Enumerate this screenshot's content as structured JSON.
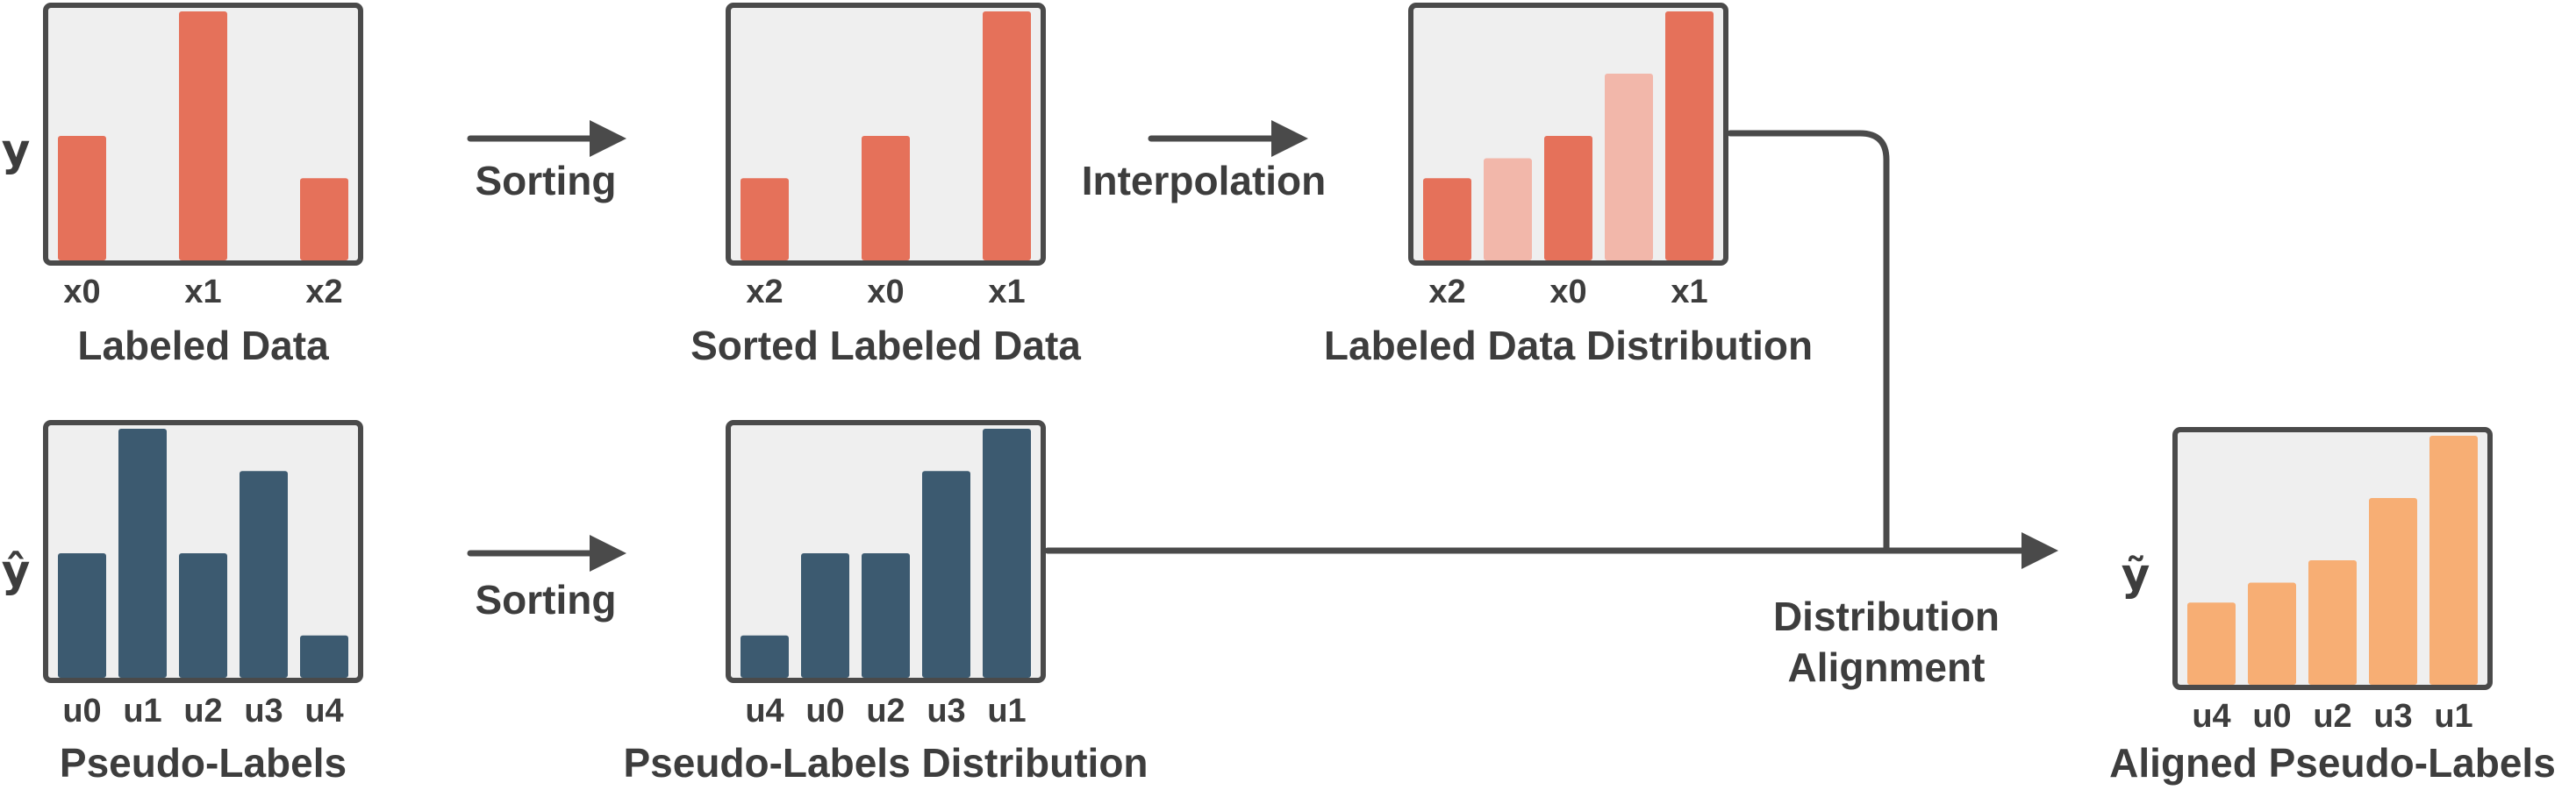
{
  "colors": {
    "labeled": "#e5715a",
    "labeled_interp": "#f2b7aa",
    "pseudo": "#3c5a70",
    "aligned": "#f7ae74",
    "panel_bg": "#efefef",
    "frame": "#4a4a4a",
    "text": "#3d3d3d"
  },
  "axis_labels": {
    "labeled": "y",
    "pseudo": "ŷ",
    "aligned": "ỹ"
  },
  "steps": {
    "sorting_top": "Sorting",
    "interpolation": "Interpolation",
    "sorting_bottom": "Sorting",
    "alignment_line1": "Distribution",
    "alignment_line2": "Alignment"
  },
  "chart_data": [
    {
      "id": "labeled",
      "type": "bar",
      "title": "Labeled Data",
      "categories": [
        "x0",
        "x1",
        "x2"
      ],
      "values": [
        0.5,
        1.0,
        0.33
      ],
      "ylim": [
        0,
        1
      ],
      "color_key": "labeled"
    },
    {
      "id": "sorted",
      "type": "bar",
      "title": "Sorted Labeled Data",
      "categories": [
        "x2",
        "x0",
        "x1"
      ],
      "values": [
        0.33,
        0.5,
        1.0
      ],
      "ylim": [
        0,
        1
      ],
      "color_key": "labeled"
    },
    {
      "id": "distribution",
      "type": "bar",
      "title": "Labeled Data Distribution",
      "categories": [
        "x2",
        "",
        "x0",
        "",
        "x1"
      ],
      "values": [
        0.33,
        0.41,
        0.5,
        0.75,
        1.0
      ],
      "interpolated": [
        false,
        true,
        false,
        true,
        false
      ],
      "ylim": [
        0,
        1
      ],
      "color_key": "labeled"
    },
    {
      "id": "pseudo",
      "type": "bar",
      "title": "Pseudo-Labels",
      "categories": [
        "u0",
        "u1",
        "u2",
        "u3",
        "u4"
      ],
      "values": [
        0.5,
        1.0,
        0.5,
        0.83,
        0.17
      ],
      "ylim": [
        0,
        1
      ],
      "color_key": "pseudo"
    },
    {
      "id": "pseudo_dist",
      "type": "bar",
      "title": "Pseudo-Labels Distribution",
      "categories": [
        "u4",
        "u0",
        "u2",
        "u3",
        "u1"
      ],
      "values": [
        0.17,
        0.5,
        0.5,
        0.83,
        1.0
      ],
      "ylim": [
        0,
        1
      ],
      "color_key": "pseudo"
    },
    {
      "id": "aligned",
      "type": "bar",
      "title": "Aligned Pseudo-Labels",
      "categories": [
        "u4",
        "u0",
        "u2",
        "u3",
        "u1"
      ],
      "values": [
        0.33,
        0.41,
        0.5,
        0.75,
        1.0
      ],
      "ylim": [
        0,
        1
      ],
      "color_key": "aligned"
    }
  ]
}
